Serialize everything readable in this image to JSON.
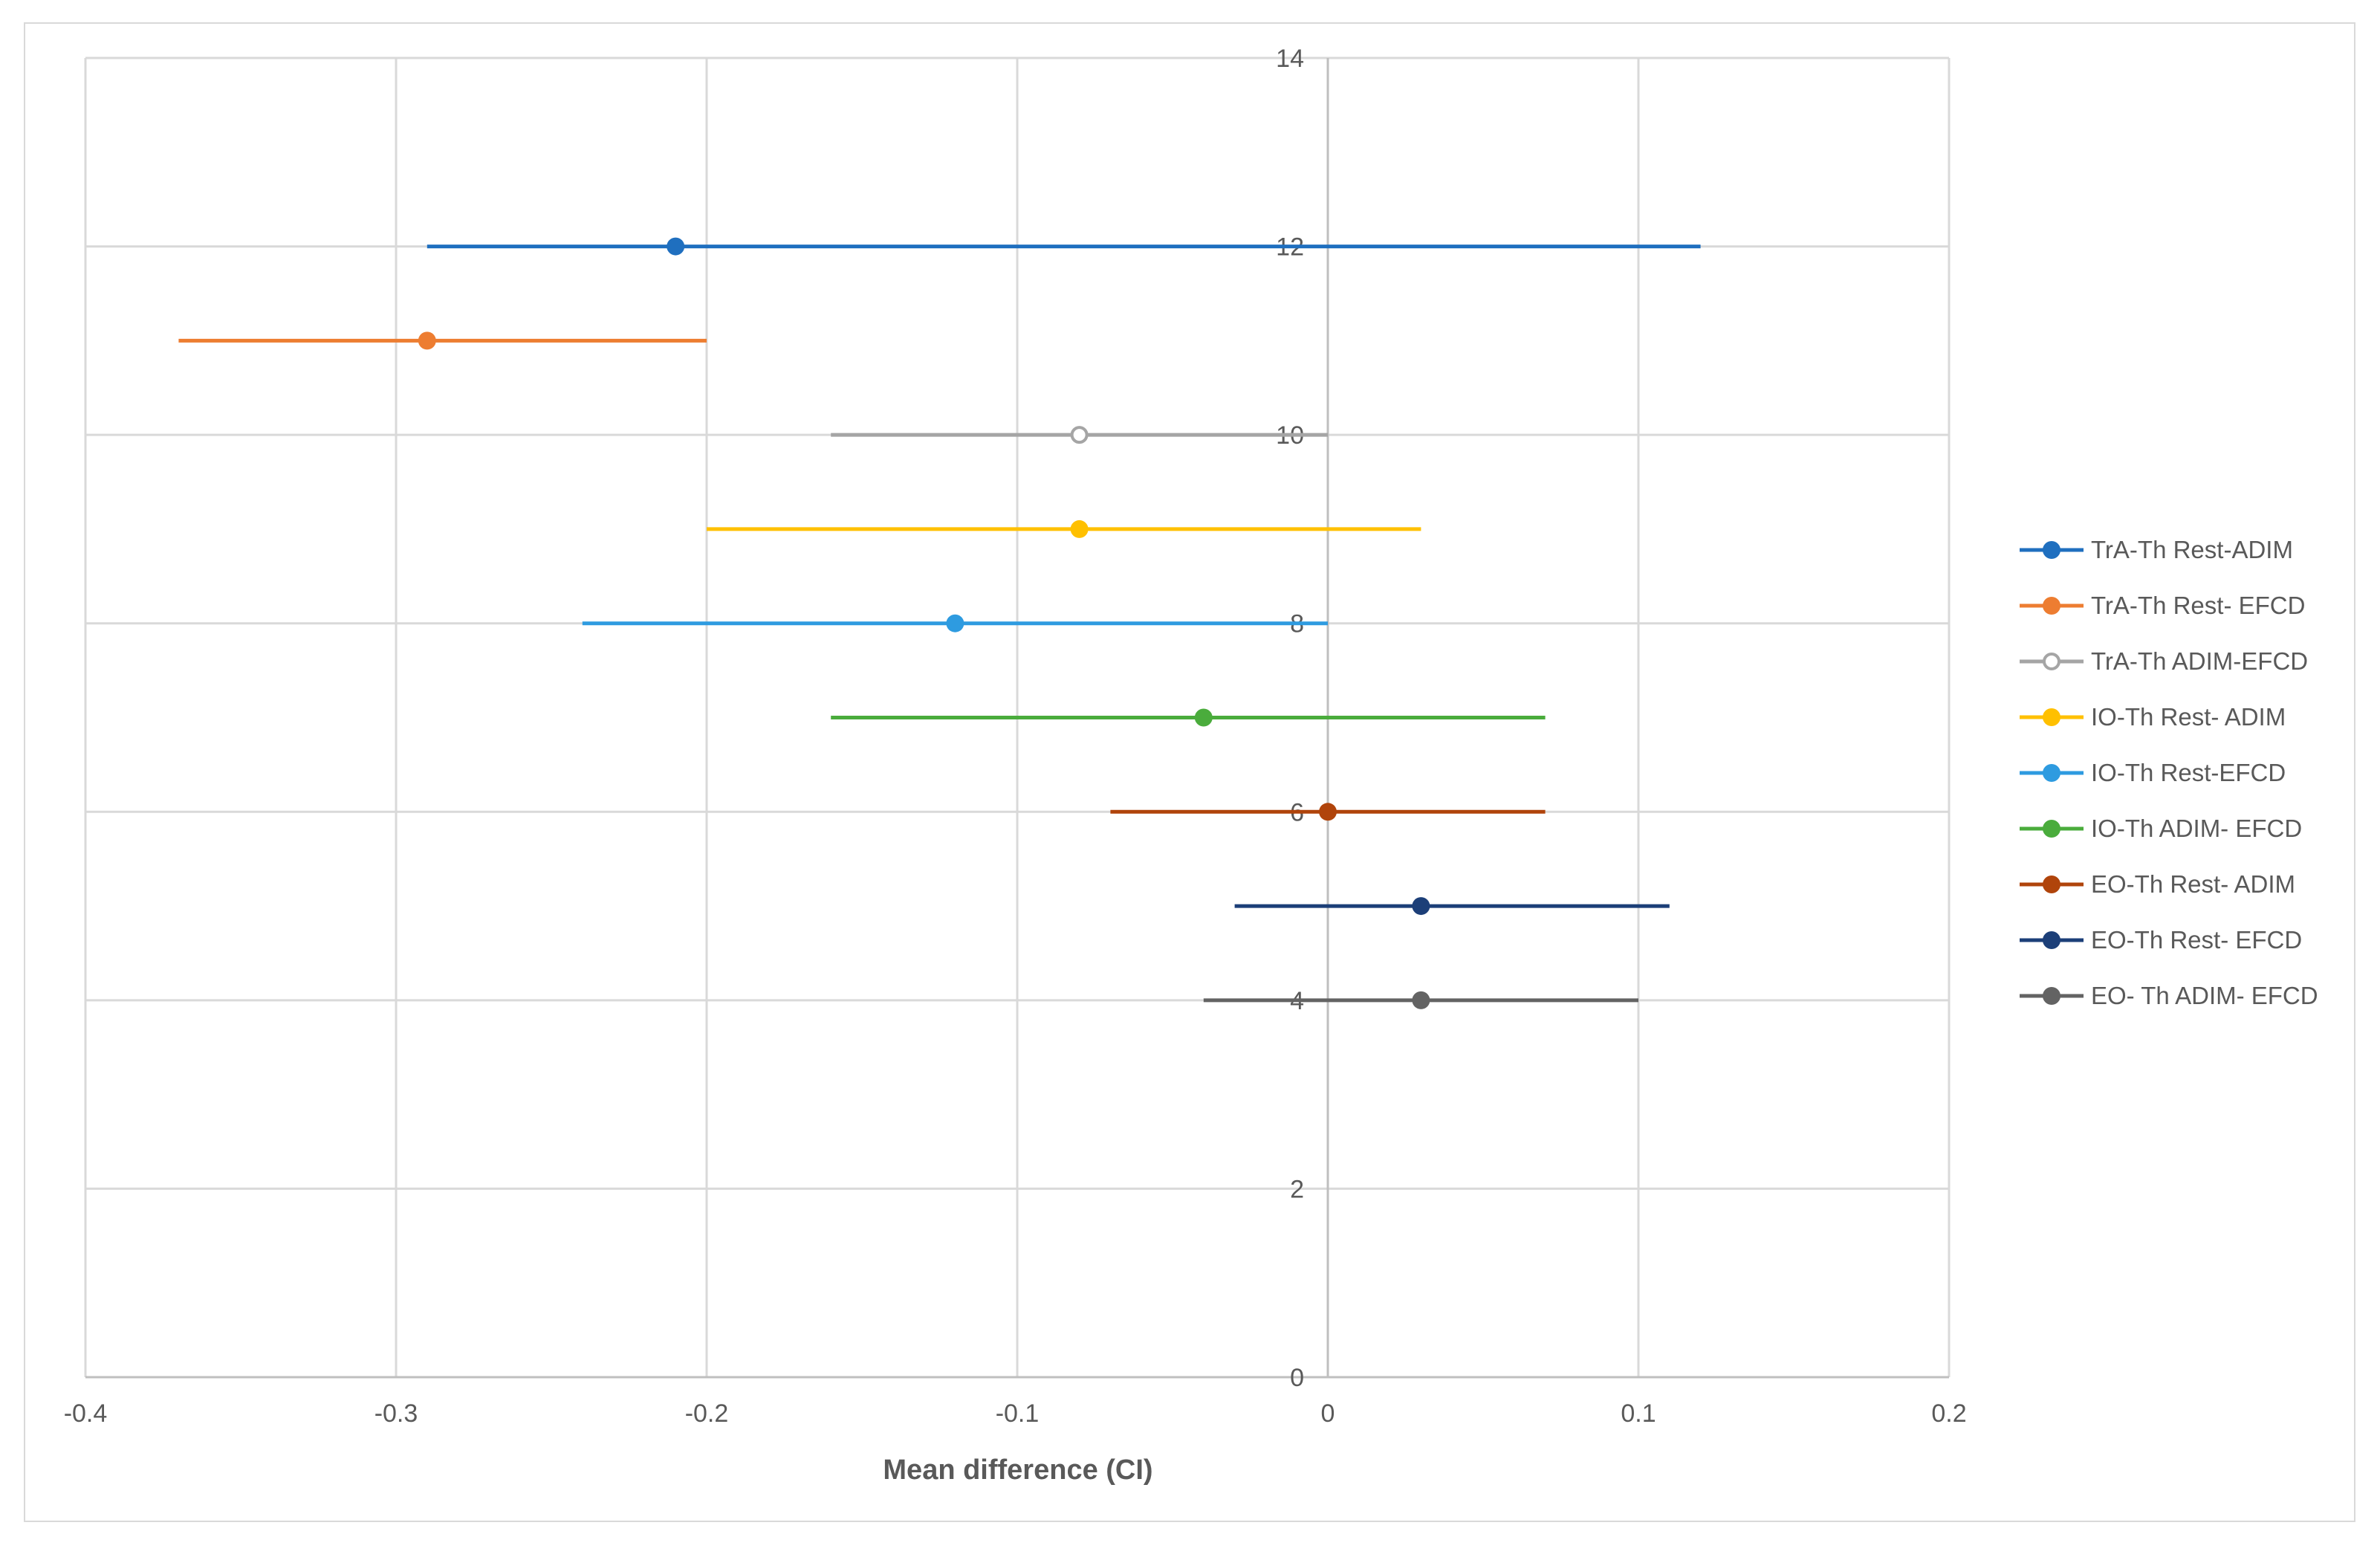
{
  "chart_data": {
    "type": "scatter",
    "xlabel": "Mean difference (CI)",
    "ylabel": "",
    "xlim": [
      -0.4,
      0.2
    ],
    "ylim": [
      0,
      14
    ],
    "x_ticks": [
      "-0.4",
      "-0.3",
      "-0.2",
      "-0.1",
      "0",
      "0.1",
      "0.2"
    ],
    "y_ticks": [
      "0",
      "2",
      "4",
      "6",
      "8",
      "10",
      "12",
      "14"
    ],
    "grid": true,
    "legend_position": "right",
    "series": [
      {
        "name": "TrA-Th Rest-ADIM",
        "y": 12,
        "mean": -0.21,
        "ci_low": -0.29,
        "ci_high": 0.12,
        "color": "#1f6fbf",
        "marker": "filled"
      },
      {
        "name": "TrA-Th Rest- EFCD",
        "y": 11,
        "mean": -0.29,
        "ci_low": -0.37,
        "ci_high": -0.2,
        "color": "#ed7d31",
        "marker": "filled"
      },
      {
        "name": "TrA-Th ADIM-EFCD",
        "y": 10,
        "mean": -0.08,
        "ci_low": -0.16,
        "ci_high": 0.0,
        "color": "#a5a5a5",
        "marker": "hollow"
      },
      {
        "name": "IO-Th Rest- ADIM",
        "y": 9,
        "mean": -0.08,
        "ci_low": -0.2,
        "ci_high": 0.03,
        "color": "#ffc000",
        "marker": "filled"
      },
      {
        "name": "IO-Th Rest-EFCD",
        "y": 8,
        "mean": -0.12,
        "ci_low": -0.24,
        "ci_high": 0.0,
        "color": "#2e9be0",
        "marker": "filled"
      },
      {
        "name": "IO-Th ADIM- EFCD",
        "y": 7,
        "mean": -0.04,
        "ci_low": -0.16,
        "ci_high": 0.07,
        "color": "#4aac3c",
        "marker": "filled"
      },
      {
        "name": "EO-Th Rest- ADIM",
        "y": 6,
        "mean": 0.0,
        "ci_low": -0.07,
        "ci_high": 0.07,
        "color": "#b0440b",
        "marker": "filled"
      },
      {
        "name": "EO-Th Rest- EFCD",
        "y": 5,
        "mean": 0.03,
        "ci_low": -0.03,
        "ci_high": 0.11,
        "color": "#1c3f78",
        "marker": "filled"
      },
      {
        "name": "EO- Th ADIM- EFCD",
        "y": 4,
        "mean": 0.03,
        "ci_low": -0.04,
        "ci_high": 0.1,
        "color": "#636363",
        "marker": "filled"
      }
    ]
  }
}
